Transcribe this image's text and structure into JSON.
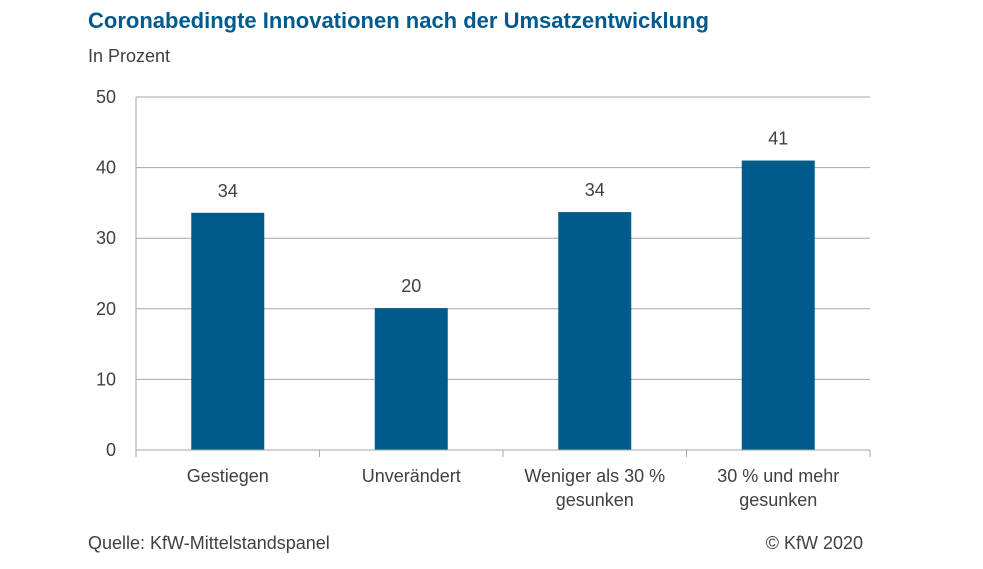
{
  "chart_data": {
    "type": "bar",
    "title": "Coronabedingte Innovationen nach der Umsatzentwicklung",
    "subtitle": "In Prozent",
    "categories": [
      [
        "Gestiegen"
      ],
      [
        "Unverändert"
      ],
      [
        "Weniger als 30 %",
        "gesunken"
      ],
      [
        "30 % und mehr",
        "gesunken"
      ]
    ],
    "values": [
      33.6,
      20.1,
      33.7,
      41.0
    ],
    "data_labels": [
      "34",
      "20",
      "34",
      "41"
    ],
    "ylim": [
      0,
      50
    ],
    "yticks": [
      0,
      10,
      20,
      30,
      40,
      50
    ],
    "grid": true,
    "bar_color": "#005A8C",
    "grid_color": "#A6A6A6",
    "text_color": "#404040",
    "title_color": "#005A8C"
  },
  "footer": {
    "source": "Quelle: KfW-Mittelstandspanel",
    "copyright": "© KfW 2020"
  }
}
